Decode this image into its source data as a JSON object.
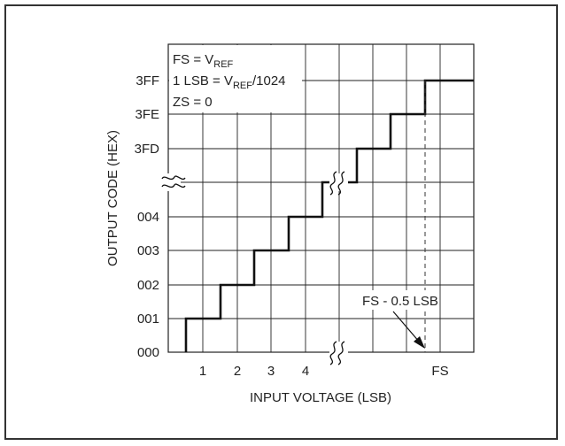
{
  "diagram": {
    "y_axis_label": "OUTPUT CODE (HEX)",
    "x_axis_label": "INPUT VOLTAGE (LSB)",
    "y_tick_labels": [
      "000",
      "001",
      "002",
      "003",
      "004",
      "3FD",
      "3FE",
      "3FF"
    ],
    "x_tick_labels": [
      "1",
      "2",
      "3",
      "4",
      "FS"
    ],
    "notes": {
      "fs_prefix": "FS = V",
      "fs_sub": "REF",
      "lsb_prefix": "1 LSB = V",
      "lsb_sub": "REF",
      "lsb_suffix": "/1024",
      "zs": "ZS = 0"
    },
    "annotation": "FS - 0.5 LSB",
    "axis_break_symbol": "≈"
  }
}
